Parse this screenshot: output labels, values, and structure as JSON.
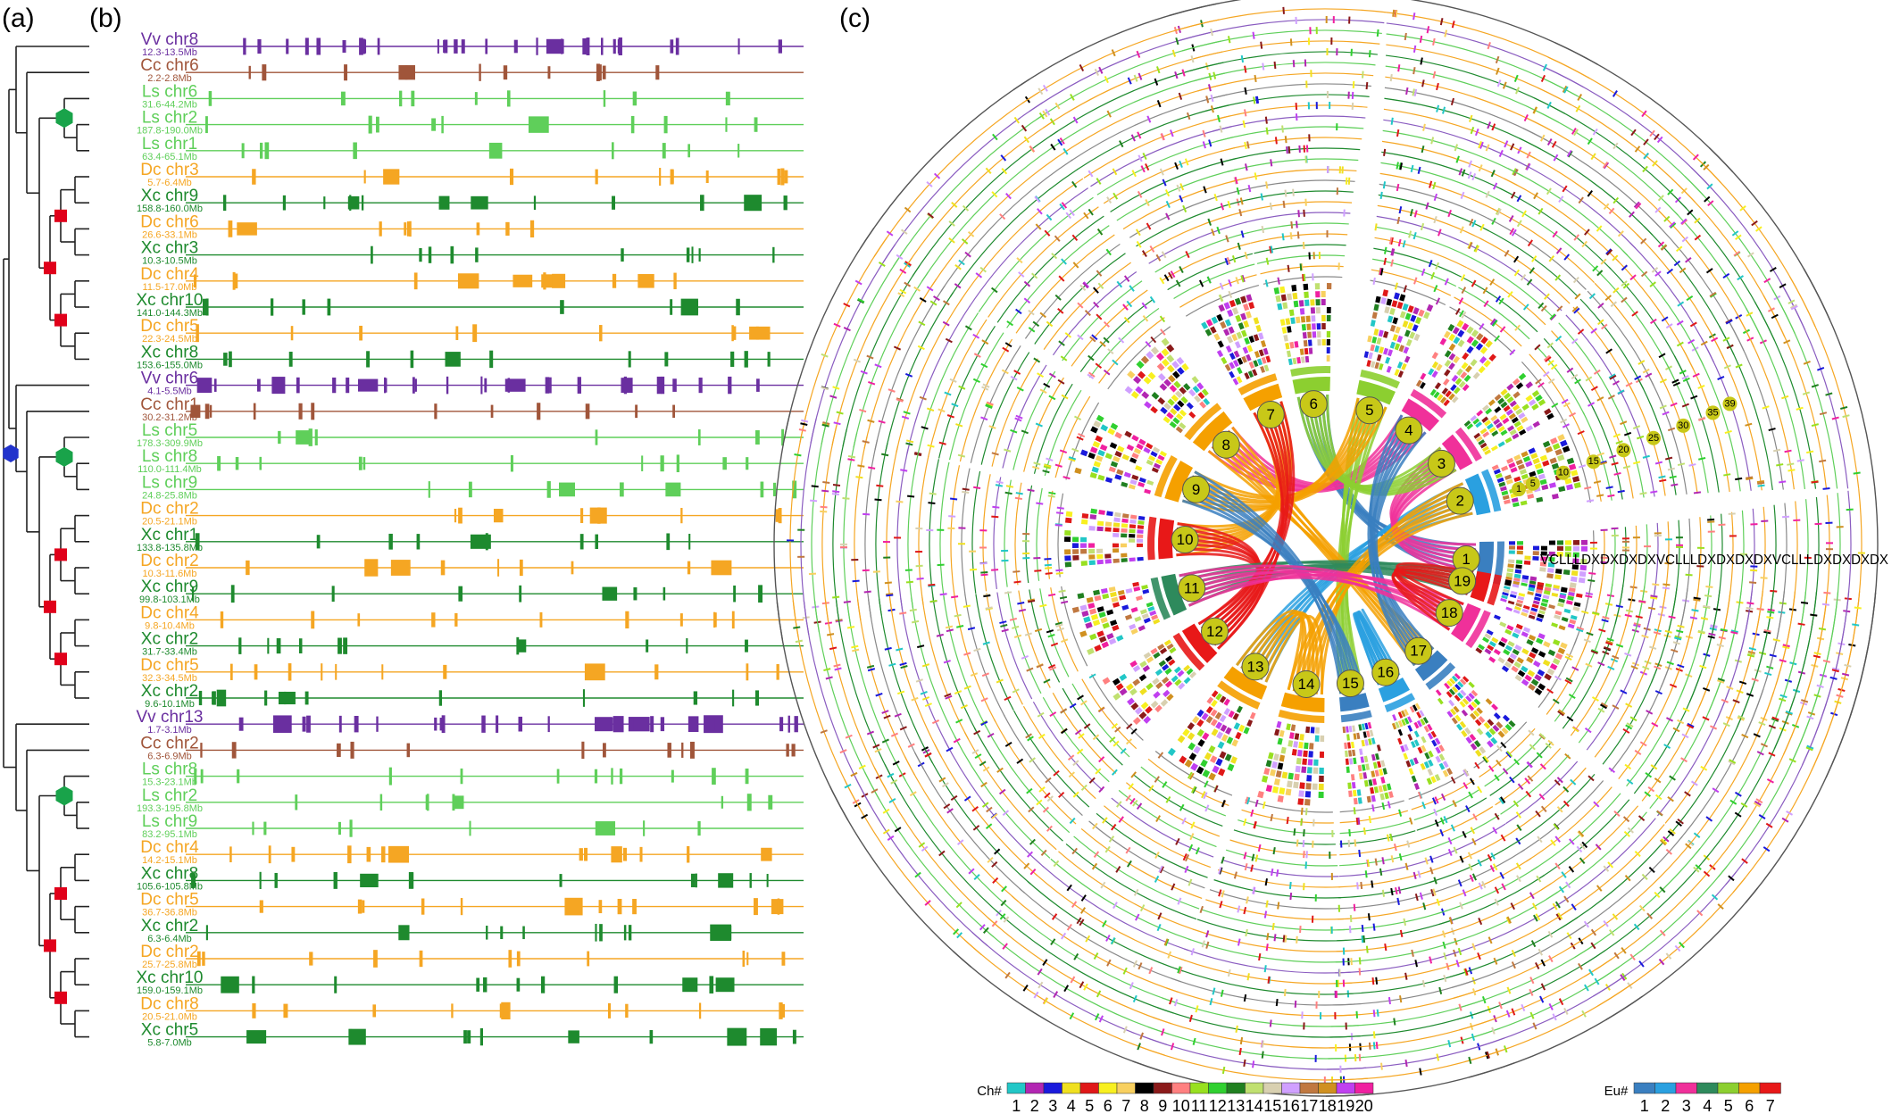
{
  "panels": {
    "a": "(a)",
    "b": "(b)",
    "c": "(c)"
  },
  "colors": {
    "Vv": "#6a2fa0",
    "Cc": "#a0553a",
    "Ls": "#5fcf5a",
    "Dc": "#f5a623",
    "Xc": "#1e8a2e",
    "tree": "#222222",
    "hexTop": "#2233cc",
    "hexLs": "#19a34a",
    "square": "#e0001a"
  },
  "tracks": [
    {
      "species": "Vv",
      "name": "Vv chr8",
      "region": "12.3-13.5Mb"
    },
    {
      "species": "Cc",
      "name": "Cc chr6",
      "region": "2.2-2.8Mb"
    },
    {
      "species": "Ls",
      "name": "Ls chr6",
      "region": "31.6-44.2Mb"
    },
    {
      "species": "Ls",
      "name": "Ls chr2",
      "region": "187.8-190.0Mb"
    },
    {
      "species": "Ls",
      "name": "Ls chr1",
      "region": "63.4-65.1Mb"
    },
    {
      "species": "Dc",
      "name": "Dc chr3",
      "region": "5.7-6.4Mb"
    },
    {
      "species": "Xc",
      "name": "Xc chr9",
      "region": "158.8-160.0Mb"
    },
    {
      "species": "Dc",
      "name": "Dc chr6",
      "region": "26.6-33.1Mb"
    },
    {
      "species": "Xc",
      "name": "Xc chr3",
      "region": "10.3-10.5Mb"
    },
    {
      "species": "Dc",
      "name": "Dc chr4",
      "region": "11.5-17.0Mb"
    },
    {
      "species": "Xc",
      "name": "Xc chr10",
      "region": "141.0-144.3Mb"
    },
    {
      "species": "Dc",
      "name": "Dc chr5",
      "region": "22.3-24.5Mb"
    },
    {
      "species": "Xc",
      "name": "Xc chr8",
      "region": "153.6-155.0Mb"
    },
    {
      "species": "Vv",
      "name": "Vv chr6",
      "region": "4.1-5.5Mb"
    },
    {
      "species": "Cc",
      "name": "Cc chr1",
      "region": "30.2-31.2Mb"
    },
    {
      "species": "Ls",
      "name": "Ls chr5",
      "region": "178.3-309.9Mb"
    },
    {
      "species": "Ls",
      "name": "Ls chr8",
      "region": "110.0-111.4Mb"
    },
    {
      "species": "Ls",
      "name": "Ls chr9",
      "region": "24.8-25.8Mb"
    },
    {
      "species": "Dc",
      "name": "Dc chr2",
      "region": "20.5-21.1Mb"
    },
    {
      "species": "Xc",
      "name": "Xc chr1",
      "region": "133.8-135.8Mb"
    },
    {
      "species": "Dc",
      "name": "Dc chr2",
      "region": "10.3-11.6Mb"
    },
    {
      "species": "Xc",
      "name": "Xc chr9",
      "region": "99.8-103.1Mb"
    },
    {
      "species": "Dc",
      "name": "Dc chr4",
      "region": "9.8-10.4Mb"
    },
    {
      "species": "Xc",
      "name": "Xc chr2",
      "region": "31.7-33.4Mb"
    },
    {
      "species": "Dc",
      "name": "Dc chr5",
      "region": "32.3-34.5Mb"
    },
    {
      "species": "Xc",
      "name": "Xc chr2",
      "region": "9.6-10.1Mb"
    },
    {
      "species": "Vv",
      "name": "Vv chr13",
      "region": "1.7-3.1Mb"
    },
    {
      "species": "Cc",
      "name": "Cc chr2",
      "region": "6.3-6.9Mb"
    },
    {
      "species": "Ls",
      "name": "Ls chr8",
      "region": "15.3-23.1Mb"
    },
    {
      "species": "Ls",
      "name": "Ls chr2",
      "region": "193.3-195.8Mb"
    },
    {
      "species": "Ls",
      "name": "Ls chr9",
      "region": "83.2-95.1Mb"
    },
    {
      "species": "Dc",
      "name": "Dc chr4",
      "region": "14.2-15.1Mb"
    },
    {
      "species": "Xc",
      "name": "Xc chr8",
      "region": "105.6-105.8Mb"
    },
    {
      "species": "Dc",
      "name": "Dc chr5",
      "region": "36.7-36.8Mb"
    },
    {
      "species": "Xc",
      "name": "Xc chr2",
      "region": "6.3-6.4Mb"
    },
    {
      "species": "Dc",
      "name": "Dc chr2",
      "region": "25.7-25.8Mb"
    },
    {
      "species": "Xc",
      "name": "Xc chr10",
      "region": "159.0-159.1Mb"
    },
    {
      "species": "Dc",
      "name": "Dc chr8",
      "region": "20.5-21.0Mb"
    },
    {
      "species": "Xc",
      "name": "Xc chr5",
      "region": "5.8-7.0Mb"
    }
  ],
  "circos": {
    "chromosomes": [
      "1",
      "2",
      "3",
      "4",
      "5",
      "6",
      "7",
      "8",
      "9",
      "10",
      "11",
      "12",
      "13",
      "14",
      "15",
      "16",
      "17",
      "18",
      "19"
    ],
    "ring_numbers": [
      "1",
      "5",
      "10",
      "15",
      "20",
      "25",
      "30",
      "35",
      "39"
    ],
    "ring_labels": "VCLLLDXDXDXDXVCLLLDXDXDXDXVCLLLDXDXDXDX"
  },
  "legend_ch": {
    "title": "Ch#",
    "labels": [
      "1",
      "2",
      "3",
      "4",
      "5",
      "6",
      "7",
      "8",
      "9",
      "10",
      "11",
      "12",
      "13",
      "14",
      "15",
      "16",
      "17",
      "18",
      "19",
      "20"
    ],
    "colors": [
      "#22c7c7",
      "#b226b2",
      "#1a1adc",
      "#f0e020",
      "#e01818",
      "#f8f020",
      "#f8d060",
      "#000000",
      "#8b1a1a",
      "#ff8080",
      "#98e020",
      "#30d030",
      "#208020",
      "#c0e070",
      "#d8d0b0",
      "#d0a0ff",
      "#c07840",
      "#d09020",
      "#c040f0",
      "#f020a0"
    ]
  },
  "legend_eu": {
    "title": "Eu#",
    "labels": [
      "1",
      "2",
      "3",
      "4",
      "5",
      "6",
      "7"
    ],
    "colors": [
      "#3a7fc0",
      "#2aa0e0",
      "#f0309a",
      "#2e8a5c",
      "#8ccf30",
      "#f5a000",
      "#e81818"
    ]
  }
}
